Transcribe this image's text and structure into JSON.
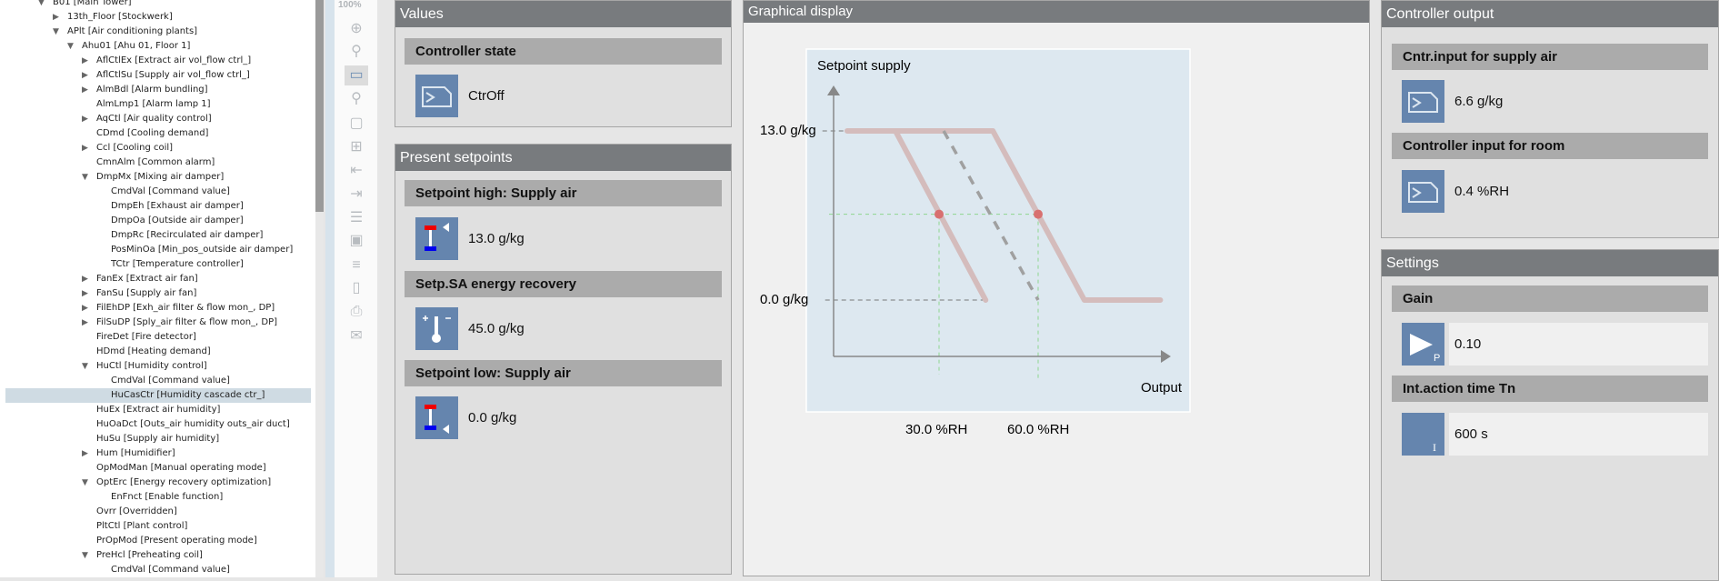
{
  "tree": [
    {
      "label": "B01 [Main Tower]",
      "level": 0,
      "state": "expanded"
    },
    {
      "label": "13th_Floor [Stockwerk]",
      "level": 1,
      "state": "collapsed"
    },
    {
      "label": "APlt [Air conditioning plants]",
      "level": 1,
      "state": "expanded"
    },
    {
      "label": "Ahu01 [Ahu 01, Floor 1]",
      "level": 2,
      "state": "expanded"
    },
    {
      "label": "AflCtlEx [Extract air vol_flow ctrl_]",
      "level": 3,
      "state": "collapsed"
    },
    {
      "label": "AflCtlSu [Supply air vol_flow ctrl_]",
      "level": 3,
      "state": "collapsed"
    },
    {
      "label": "AlmBdl [Alarm bundling]",
      "level": 3,
      "state": "collapsed"
    },
    {
      "label": "AlmLmp1 [Alarm lamp 1]",
      "level": 3,
      "state": "none"
    },
    {
      "label": "AqCtl [Air quality control]",
      "level": 3,
      "state": "collapsed"
    },
    {
      "label": "CDmd [Cooling demand]",
      "level": 3,
      "state": "none"
    },
    {
      "label": "Ccl [Cooling coil]",
      "level": 3,
      "state": "collapsed"
    },
    {
      "label": "CmnAlm [Common alarm]",
      "level": 3,
      "state": "none"
    },
    {
      "label": "DmpMx [Mixing air damper]",
      "level": 3,
      "state": "expanded"
    },
    {
      "label": "CmdVal [Command value]",
      "level": 4,
      "state": "none"
    },
    {
      "label": "DmpEh [Exhaust air damper]",
      "level": 4,
      "state": "none"
    },
    {
      "label": "DmpOa [Outside air damper]",
      "level": 4,
      "state": "none"
    },
    {
      "label": "DmpRc [Recirculated air damper]",
      "level": 4,
      "state": "none"
    },
    {
      "label": "PosMinOa [Min_pos_outside air damper]",
      "level": 4,
      "state": "none"
    },
    {
      "label": "TCtr [Temperature controller]",
      "level": 4,
      "state": "none"
    },
    {
      "label": "FanEx [Extract air fan]",
      "level": 3,
      "state": "collapsed"
    },
    {
      "label": "FanSu [Supply air fan]",
      "level": 3,
      "state": "collapsed"
    },
    {
      "label": "FilEhDP [Exh_air filter & flow mon_, DP]",
      "level": 3,
      "state": "collapsed"
    },
    {
      "label": "FilSuDP [Sply_air filter & flow mon_, DP]",
      "level": 3,
      "state": "collapsed"
    },
    {
      "label": "FireDet [Fire detector]",
      "level": 3,
      "state": "none"
    },
    {
      "label": "HDmd [Heating demand]",
      "level": 3,
      "state": "none"
    },
    {
      "label": "HuCtl [Humidity control]",
      "level": 3,
      "state": "expanded"
    },
    {
      "label": "CmdVal [Command value]",
      "level": 4,
      "state": "none"
    },
    {
      "label": "HuCasCtr [Humidity cascade ctr_]",
      "level": 4,
      "state": "none",
      "selected": true
    },
    {
      "label": "HuEx [Extract air humidity]",
      "level": 3,
      "state": "none"
    },
    {
      "label": "HuOaDct [Outs_air humidity outs_air duct]",
      "level": 3,
      "state": "none"
    },
    {
      "label": "HuSu [Supply air humidity]",
      "level": 3,
      "state": "none"
    },
    {
      "label": "Hum [Humidifier]",
      "level": 3,
      "state": "collapsed"
    },
    {
      "label": "OpModMan [Manual operating mode]",
      "level": 3,
      "state": "none"
    },
    {
      "label": "OptErc [Energy recovery optimization]",
      "level": 3,
      "state": "expanded"
    },
    {
      "label": "EnFnct [Enable function]",
      "level": 4,
      "state": "none"
    },
    {
      "label": "Ovrr [Overridden]",
      "level": 3,
      "state": "none"
    },
    {
      "label": "PltCtl [Plant control]",
      "level": 3,
      "state": "none"
    },
    {
      "label": "PrOpMod [Present operating mode]",
      "level": 3,
      "state": "none"
    },
    {
      "label": "PreHcl [Preheating coil]",
      "level": 3,
      "state": "expanded"
    },
    {
      "label": "CmdVal [Command value]",
      "level": 4,
      "state": "none"
    }
  ],
  "toolbar": {
    "zoom_level": "100%",
    "icons": [
      "zoom-in-icon",
      "zoom-icon",
      "fit-page-icon",
      "zoom-select-icon",
      "frame-icon",
      "grid-icon",
      "outdent-icon",
      "indent-icon",
      "lines-icon",
      "frame-image-icon",
      "list-icon",
      "page-icon",
      "print-icon",
      "comment-icon"
    ],
    "active": "fit-page-icon"
  },
  "values": {
    "title": "Values",
    "controller_state": {
      "label": "Controller state",
      "value": "CtrOff"
    }
  },
  "setpoints": {
    "title": "Present setpoints",
    "high": {
      "label": "Setpoint high: Supply air",
      "value": "13.0 g/kg"
    },
    "recovery": {
      "label": "Setp.SA energy recovery",
      "value": "45.0 g/kg"
    },
    "low": {
      "label": "Setpoint low: Supply air",
      "value": "0.0 g/kg"
    }
  },
  "graph": {
    "title": "Graphical display"
  },
  "chart_data": {
    "type": "line",
    "ylabel": "Setpoint supply",
    "xlabel": "Output",
    "y_tick_labels": [
      "13.0 g/kg",
      "0.0 g/kg"
    ],
    "y_ticks": [
      13,
      0
    ],
    "x_tick_labels": [
      "30.0 %RH",
      "60.0 %RH"
    ],
    "x_ticks": [
      30,
      60
    ],
    "xlim": [
      -2,
      100
    ],
    "ylim": [
      -4.3,
      16.4
    ],
    "series": [
      {
        "style": "solid",
        "color": "#d4bcbc",
        "points": [
          [
            2.2,
            13
          ],
          [
            46.3,
            13
          ],
          [
            74,
            0
          ],
          [
            97,
            0
          ]
        ]
      },
      {
        "style": "solid",
        "color": "#d4bcbc",
        "points": [
          [
            16.8,
            13
          ],
          [
            44.1,
            0
          ]
        ]
      },
      {
        "style": "dashed",
        "color": "#a0a0a0",
        "points": [
          [
            31.4,
            13
          ],
          [
            60,
            0
          ]
        ]
      }
    ],
    "markers": [
      {
        "x": 30,
        "y": 6.6
      },
      {
        "x": 60,
        "y": 6.6
      }
    ],
    "marker_color": "#d87070",
    "guide_color": "#8fd68f"
  },
  "output": {
    "title": "Controller output",
    "supply": {
      "label": "Cntr.input for supply air",
      "value": "6.6 g/kg"
    },
    "room": {
      "label": "Controller input for room",
      "value": "0.4 %RH"
    }
  },
  "settings": {
    "title": "Settings",
    "gain": {
      "label": "Gain",
      "value": "0.10",
      "icon_letter": "P"
    },
    "tn": {
      "label": "Int.action time Tn",
      "value": "600 s",
      "icon_letter": "I"
    }
  }
}
